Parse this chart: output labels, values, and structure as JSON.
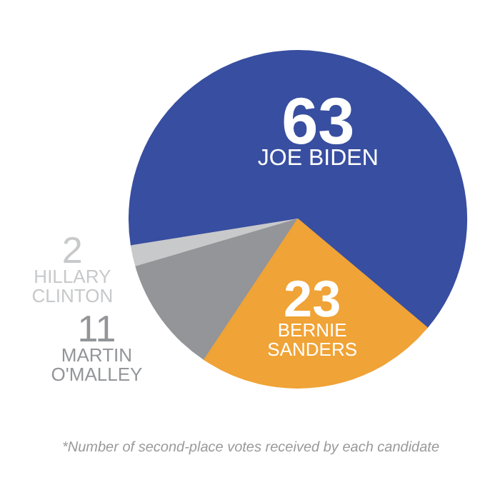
{
  "chart_data": {
    "type": "pie",
    "categories": [
      "JOE BIDEN",
      "HILLARY CLINTON",
      "MARTIN O'MALLEY",
      "BERNIE SANDERS"
    ],
    "values": [
      63,
      2,
      11,
      23
    ],
    "colors": [
      "#384ea0",
      "#c8c9cb",
      "#939598",
      "#f0a336"
    ],
    "data_labels": true,
    "annotations": [
      "*Number of second-place votes received by each candidate"
    ]
  }
}
